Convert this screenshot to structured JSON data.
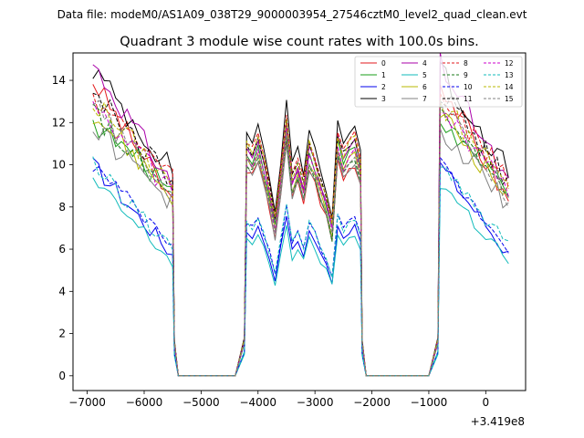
{
  "chart_data": {
    "type": "line",
    "suptitle": "Data file: modeM0/AS1A09_038T29_9000003954_27546cztM0_level2_quad_clean.evt",
    "title": "Quadrant 3 module wise count rates with 100.0s bins.",
    "xlabel": "",
    "ylabel": "",
    "x_offset_label": "+3.419e8",
    "xlim": [
      -7250,
      700
    ],
    "ylim": [
      -0.7,
      15.3
    ],
    "xticks": [
      -7000,
      -6000,
      -5000,
      -4000,
      -3000,
      -2000,
      -1000,
      0
    ],
    "xtick_labels": [
      "−7000",
      "−6000",
      "−5000",
      "−4000",
      "−3000",
      "−2000",
      "−1000",
      "0"
    ],
    "yticks": [
      0,
      2,
      4,
      6,
      8,
      10,
      12,
      14
    ],
    "ytick_labels": [
      "0",
      "2",
      "4",
      "6",
      "8",
      "10",
      "12",
      "14"
    ],
    "legend": {
      "location": "top-right",
      "columns": 4
    },
    "series": [
      {
        "name": "0",
        "color": "#e31a1c",
        "dash": "solid",
        "level": 10.0,
        "start": 14.0,
        "wiggle": 0.8
      },
      {
        "name": "1",
        "color": "#1a9e1a",
        "dash": "solid",
        "level": 10.8,
        "start": 12.0,
        "wiggle": 0.8
      },
      {
        "name": "2",
        "color": "#0000ee",
        "dash": "solid",
        "level": 7.0,
        "start": 10.0,
        "wiggle": 0.6
      },
      {
        "name": "3",
        "color": "#000000",
        "dash": "solid",
        "level": 11.8,
        "start": 14.5,
        "wiggle": 0.9
      },
      {
        "name": "4",
        "color": "#aa00aa",
        "dash": "solid",
        "level": 11.0,
        "start": 14.8,
        "wiggle": 0.8
      },
      {
        "name": "5",
        "color": "#11bbbb",
        "dash": "solid",
        "level": 6.6,
        "start": 9.2,
        "wiggle": 0.6
      },
      {
        "name": "6",
        "color": "#b8b800",
        "dash": "solid",
        "level": 10.4,
        "start": 12.5,
        "wiggle": 0.8
      },
      {
        "name": "7",
        "color": "#808080",
        "dash": "solid",
        "level": 10.0,
        "start": 11.8,
        "wiggle": 0.8
      },
      {
        "name": "8",
        "color": "#e31a1c",
        "dash": "dashed",
        "level": 11.4,
        "start": 13.3,
        "wiggle": 0.8
      },
      {
        "name": "9",
        "color": "#1a7a1a",
        "dash": "dashed",
        "level": 10.2,
        "start": 12.5,
        "wiggle": 0.8
      },
      {
        "name": "10",
        "color": "#0000ee",
        "dash": "dashed",
        "level": 7.4,
        "start": 10.0,
        "wiggle": 0.6
      },
      {
        "name": "11",
        "color": "#000000",
        "dash": "dashed",
        "level": 11.2,
        "start": 13.5,
        "wiggle": 0.8
      },
      {
        "name": "12",
        "color": "#cc00cc",
        "dash": "dashed",
        "level": 10.6,
        "start": 12.8,
        "wiggle": 0.8
      },
      {
        "name": "13",
        "color": "#11bbbb",
        "dash": "dashed",
        "level": 7.4,
        "start": 10.0,
        "wiggle": 0.6
      },
      {
        "name": "14",
        "color": "#b8b800",
        "dash": "dashed",
        "level": 11.2,
        "start": 13.0,
        "wiggle": 0.9
      },
      {
        "name": "15",
        "color": "#808080",
        "dash": "dashed",
        "level": 10.4,
        "start": 12.8,
        "wiggle": 0.8
      }
    ],
    "segments": [
      {
        "x_start": -6900,
        "x_end": -5500,
        "shape": "decline"
      },
      {
        "x_start": -5400,
        "x_end": -4400,
        "shape": "zero"
      },
      {
        "x_start": -4200,
        "x_end": -2200,
        "shape": "bumpy"
      },
      {
        "x_start": -2100,
        "x_end": -1000,
        "shape": "zero"
      },
      {
        "x_start": -800,
        "x_end": 400,
        "shape": "decline"
      }
    ]
  }
}
